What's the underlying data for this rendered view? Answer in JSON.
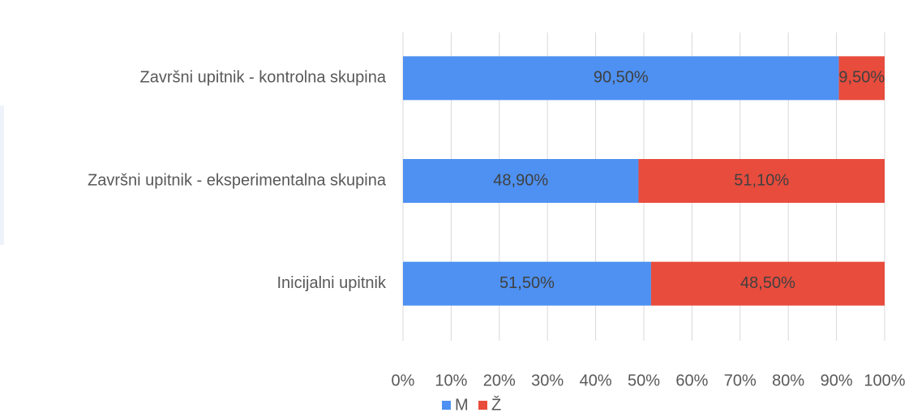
{
  "chart_data": {
    "type": "stacked_barh",
    "categories": [
      "Završni upitnik - kontrolna skupina",
      "Završni upitnik - eksperimentalna skupina",
      "Inicijalni upitnik"
    ],
    "series": [
      {
        "name": "M",
        "color": "#4e91f2",
        "values": [
          90.5,
          48.9,
          51.5
        ],
        "value_labels": [
          "90,50%",
          "48,90%",
          "51,50%"
        ]
      },
      {
        "name": "Ž",
        "color": "#e84c3d",
        "values": [
          9.5,
          51.1,
          48.5
        ],
        "value_labels": [
          "9,50%",
          "51,10%",
          "48,50%"
        ]
      }
    ],
    "xlim": [
      0,
      100
    ],
    "xticks": [
      {
        "value": 0,
        "label": "0%"
      },
      {
        "value": 10,
        "label": "10%"
      },
      {
        "value": 20,
        "label": "20%"
      },
      {
        "value": 30,
        "label": "30%"
      },
      {
        "value": 40,
        "label": "40%"
      },
      {
        "value": 50,
        "label": "50%"
      },
      {
        "value": 60,
        "label": "60%"
      },
      {
        "value": 70,
        "label": "70%"
      },
      {
        "value": 80,
        "label": "80%"
      },
      {
        "value": 90,
        "label": "90%"
      },
      {
        "value": 100,
        "label": "100%"
      }
    ],
    "grid": true,
    "legend": "bottom"
  }
}
